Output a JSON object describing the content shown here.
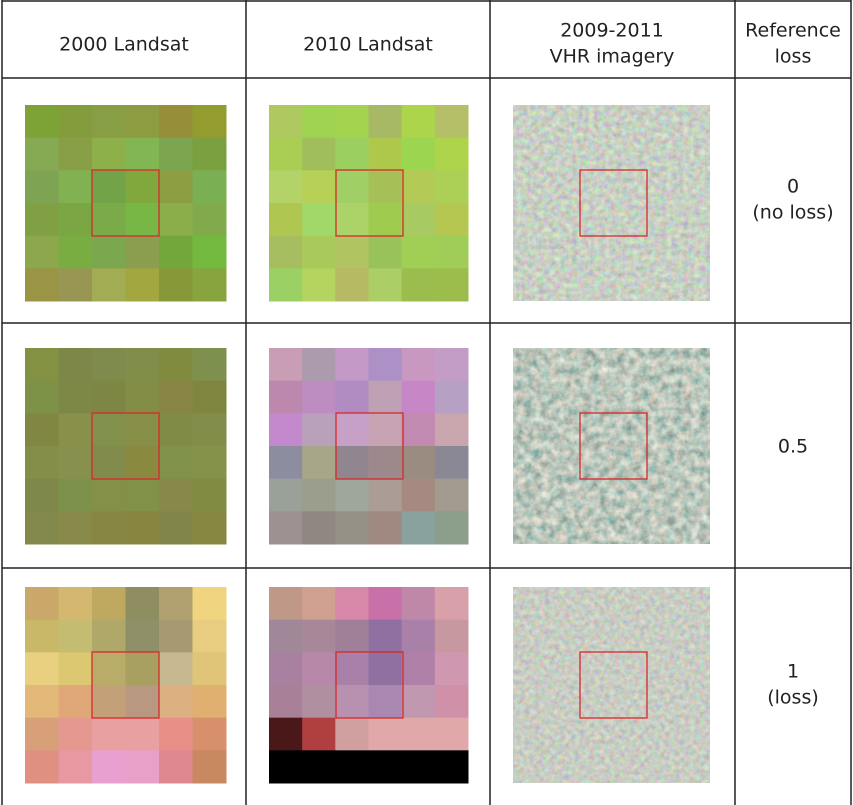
{
  "header": [
    [
      "2000 Landsat"
    ],
    [
      "2010 Landsat"
    ],
    [
      "2009-2011",
      "VHR imagery"
    ],
    [
      "Reference",
      "loss"
    ]
  ],
  "rows": [
    [
      "0",
      "(no loss)"
    ],
    [
      "0.5"
    ],
    [
      "1",
      "(loss)"
    ]
  ]
}
